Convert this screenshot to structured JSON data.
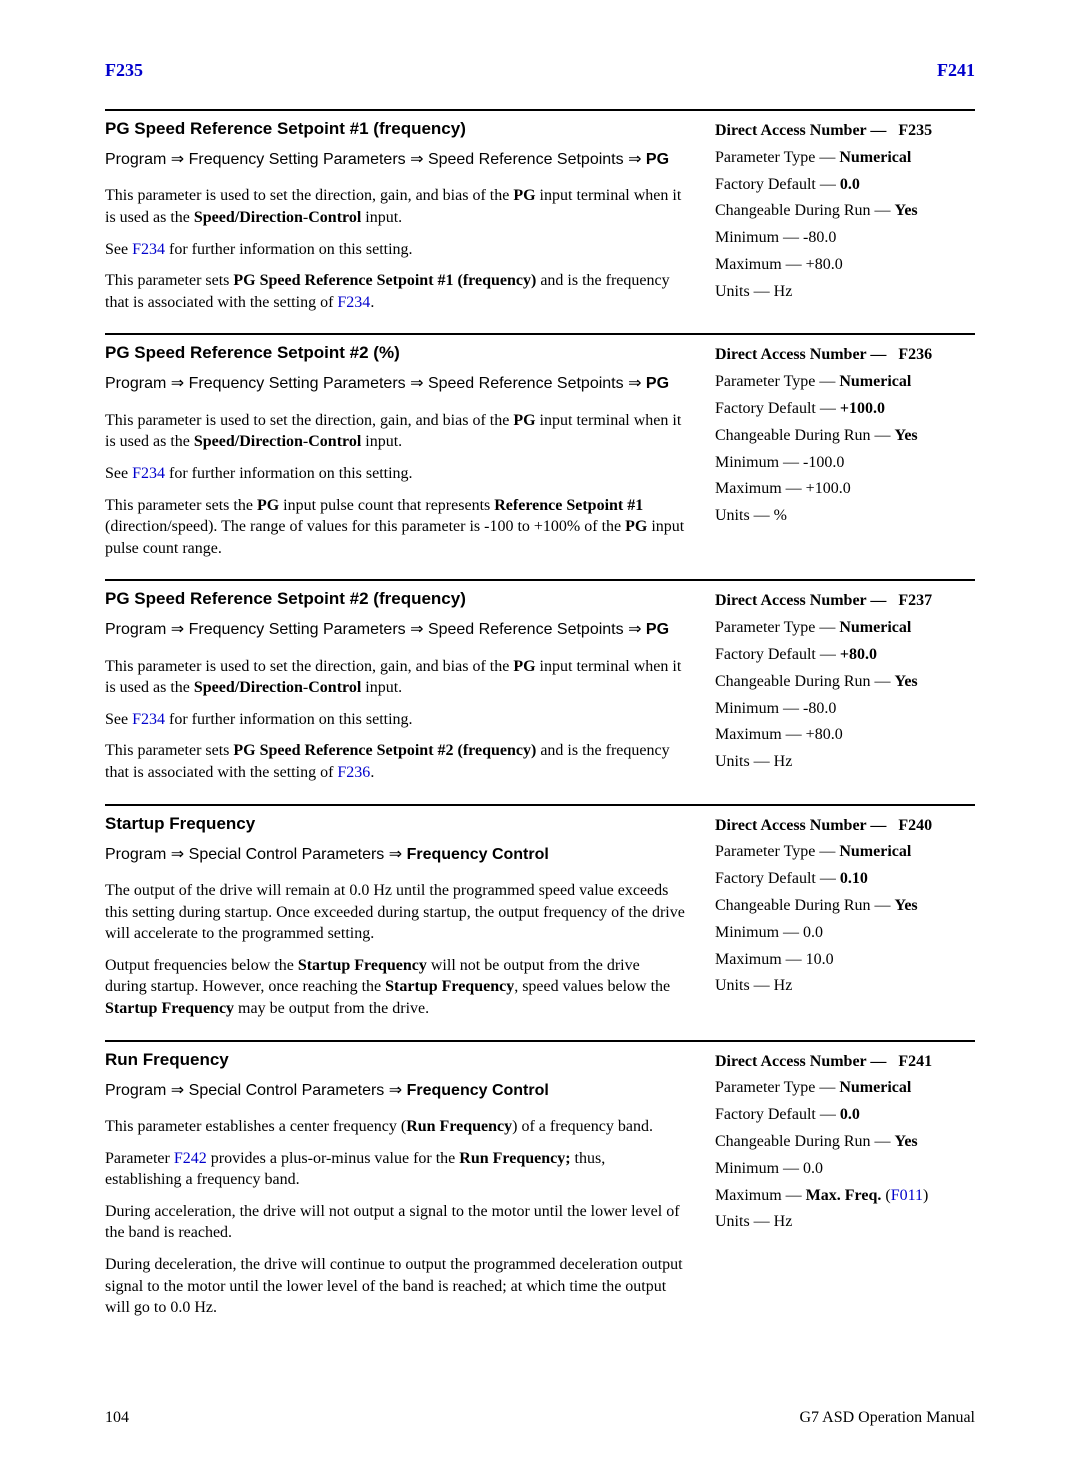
{
  "colors": {
    "link": "#0000cc",
    "text": "#000000",
    "bg": "#ffffff",
    "rule": "#000000"
  },
  "typography": {
    "body_family": "Times New Roman",
    "heading_family": "Arial",
    "body_size_pt": 12,
    "title_size_pt": 12
  },
  "header": {
    "left": "F235",
    "right": "F241"
  },
  "footer": {
    "page": "104",
    "manual": "G7 ASD Operation Manual"
  },
  "sections": [
    {
      "title": "PG Speed Reference Setpoint #1 (frequency)",
      "nav_prefix": "Program ⇒ Frequency Setting Parameters ⇒ Speed Reference Setpoints ⇒ ",
      "nav_bold": "PG",
      "p1_a": "This parameter is used to set the direction, gain, and bias of the ",
      "p1_b": "PG",
      "p1_c": " input terminal when it is used as the ",
      "p1_d": "Speed/Direction",
      "p1_e": "-",
      "p1_f": "Control",
      "p1_g": " input.",
      "p2_a": "See ",
      "p2_link": "F234",
      "p2_b": " for further information on this setting.",
      "p3_a": "This parameter sets ",
      "p3_b": "PG Speed Reference Setpoint #1 (frequency)",
      "p3_c": " and is the frequency that is associated with the setting of ",
      "p3_link": "F234",
      "p3_d": ".",
      "dan": "F235",
      "ptype": "Numerical",
      "fdefault": "0.0",
      "changeable": "Yes",
      "min": "-80.0",
      "max": "+80.0",
      "units": "Hz"
    },
    {
      "title": "PG Speed Reference Setpoint #2 (%)",
      "nav_prefix": "Program ⇒ Frequency Setting Parameters ⇒ Speed Reference Setpoints ⇒ ",
      "nav_bold": "PG",
      "p1_a": "This parameter is used to set the direction, gain, and bias of the ",
      "p1_b": "PG",
      "p1_c": " input terminal when it is used as the ",
      "p1_d": "Speed/Direction",
      "p1_e": "-",
      "p1_f": "Control",
      "p1_g": " input.",
      "p2_a": "See ",
      "p2_link": "F234",
      "p2_b": " for further information on this setting.",
      "p3x_a": "This parameter sets the ",
      "p3x_b": "PG",
      "p3x_c": " input pulse count that represents ",
      "p3x_d": "Reference Setpoint #1",
      "p3x_e": " (direction/speed). The range of values for this parameter is -100 to +100% of the ",
      "p3x_f": "PG",
      "p3x_g": " input pulse count range.",
      "dan": "F236",
      "ptype": "Numerical",
      "fdefault": "+100.0",
      "changeable": "Yes",
      "min": "-100.0",
      "max": "+100.0",
      "units": "%"
    },
    {
      "title": "PG Speed Reference Setpoint #2 (frequency)",
      "nav_prefix": "Program ⇒ Frequency Setting Parameters ⇒ Speed Reference Setpoints ⇒ ",
      "nav_bold": "PG",
      "p1_a": "This parameter is used to set the direction, gain, and bias of the ",
      "p1_b": "PG",
      "p1_c": " input terminal when it is used as the ",
      "p1_d": "Speed/Direction",
      "p1_e": "-",
      "p1_f": "Control",
      "p1_g": " input.",
      "p2_a": "See ",
      "p2_link": "F234",
      "p2_b": " for further information on this setting.",
      "p3_a": "This parameter sets ",
      "p3_b": "PG Speed Reference Setpoint #2 (frequency)",
      "p3_c": " and is the frequency that is associated with the setting of ",
      "p3_link": "F236",
      "p3_d": ".",
      "dan": "F237",
      "ptype": "Numerical",
      "fdefault": "+80.0",
      "changeable": "Yes",
      "min": "-80.0",
      "max": "+80.0",
      "units": "Hz"
    },
    {
      "title": "Startup Frequency",
      "nav4_a": "Program ⇒ Special Control Parameters ⇒ ",
      "nav4_b": "Frequency Control",
      "sf_p1": "The output of the drive will remain at 0.0 Hz until the programmed speed value exceeds this setting during startup. Once exceeded during startup, the output frequency of the drive will accelerate to the programmed setting.",
      "sf_p2_a": "Output frequencies below the ",
      "sf_p2_b": "Startup Frequency",
      "sf_p2_c": " will not be output from the drive during startup. However, once reaching the ",
      "sf_p2_d": "Startup Frequency",
      "sf_p2_e": ", speed values below the ",
      "sf_p2_f": "Startup Frequency",
      "sf_p2_g": " may be output from the drive.",
      "dan": "F240",
      "ptype": "Numerical",
      "fdefault": "0.10",
      "changeable": "Yes",
      "min": "0.0",
      "max": "10.0",
      "units": "Hz"
    },
    {
      "title": "Run Frequency",
      "nav4_a": "Program ⇒ Special Control Parameters ⇒ ",
      "nav4_b": "Frequency Control",
      "rf_p1_a": "This parameter establishes a center frequency (",
      "rf_p1_b": "Run Frequency",
      "rf_p1_c": ") of a frequency band.",
      "rf_p2_a": "Parameter ",
      "rf_p2_link": "F242",
      "rf_p2_b": " provides a plus-or-minus value for the ",
      "rf_p2_c": "Run Frequency;",
      "rf_p2_d": " thus, establishing a frequency band.",
      "rf_p3": "During acceleration, the drive will not output a signal to the motor until the lower level of the band is reached.",
      "rf_p4": "During deceleration, the drive will continue to output the programmed deceleration output signal to the motor until the lower level of the band is reached; at which time the output will go to 0.0 Hz.",
      "dan": "F241",
      "ptype": "Numerical",
      "fdefault": "0.0",
      "changeable": "Yes",
      "min": "0.0",
      "max_label": "Max. Freq.",
      "max_link": "F011",
      "units": "Hz"
    }
  ],
  "labels": {
    "dan": "Direct Access Number —",
    "ptype": "Parameter Type — ",
    "fdefault": "Factory Default — ",
    "changeable": "Changeable During Run — ",
    "min": "Minimum — ",
    "max": "Maximum — ",
    "units": "Units — "
  }
}
